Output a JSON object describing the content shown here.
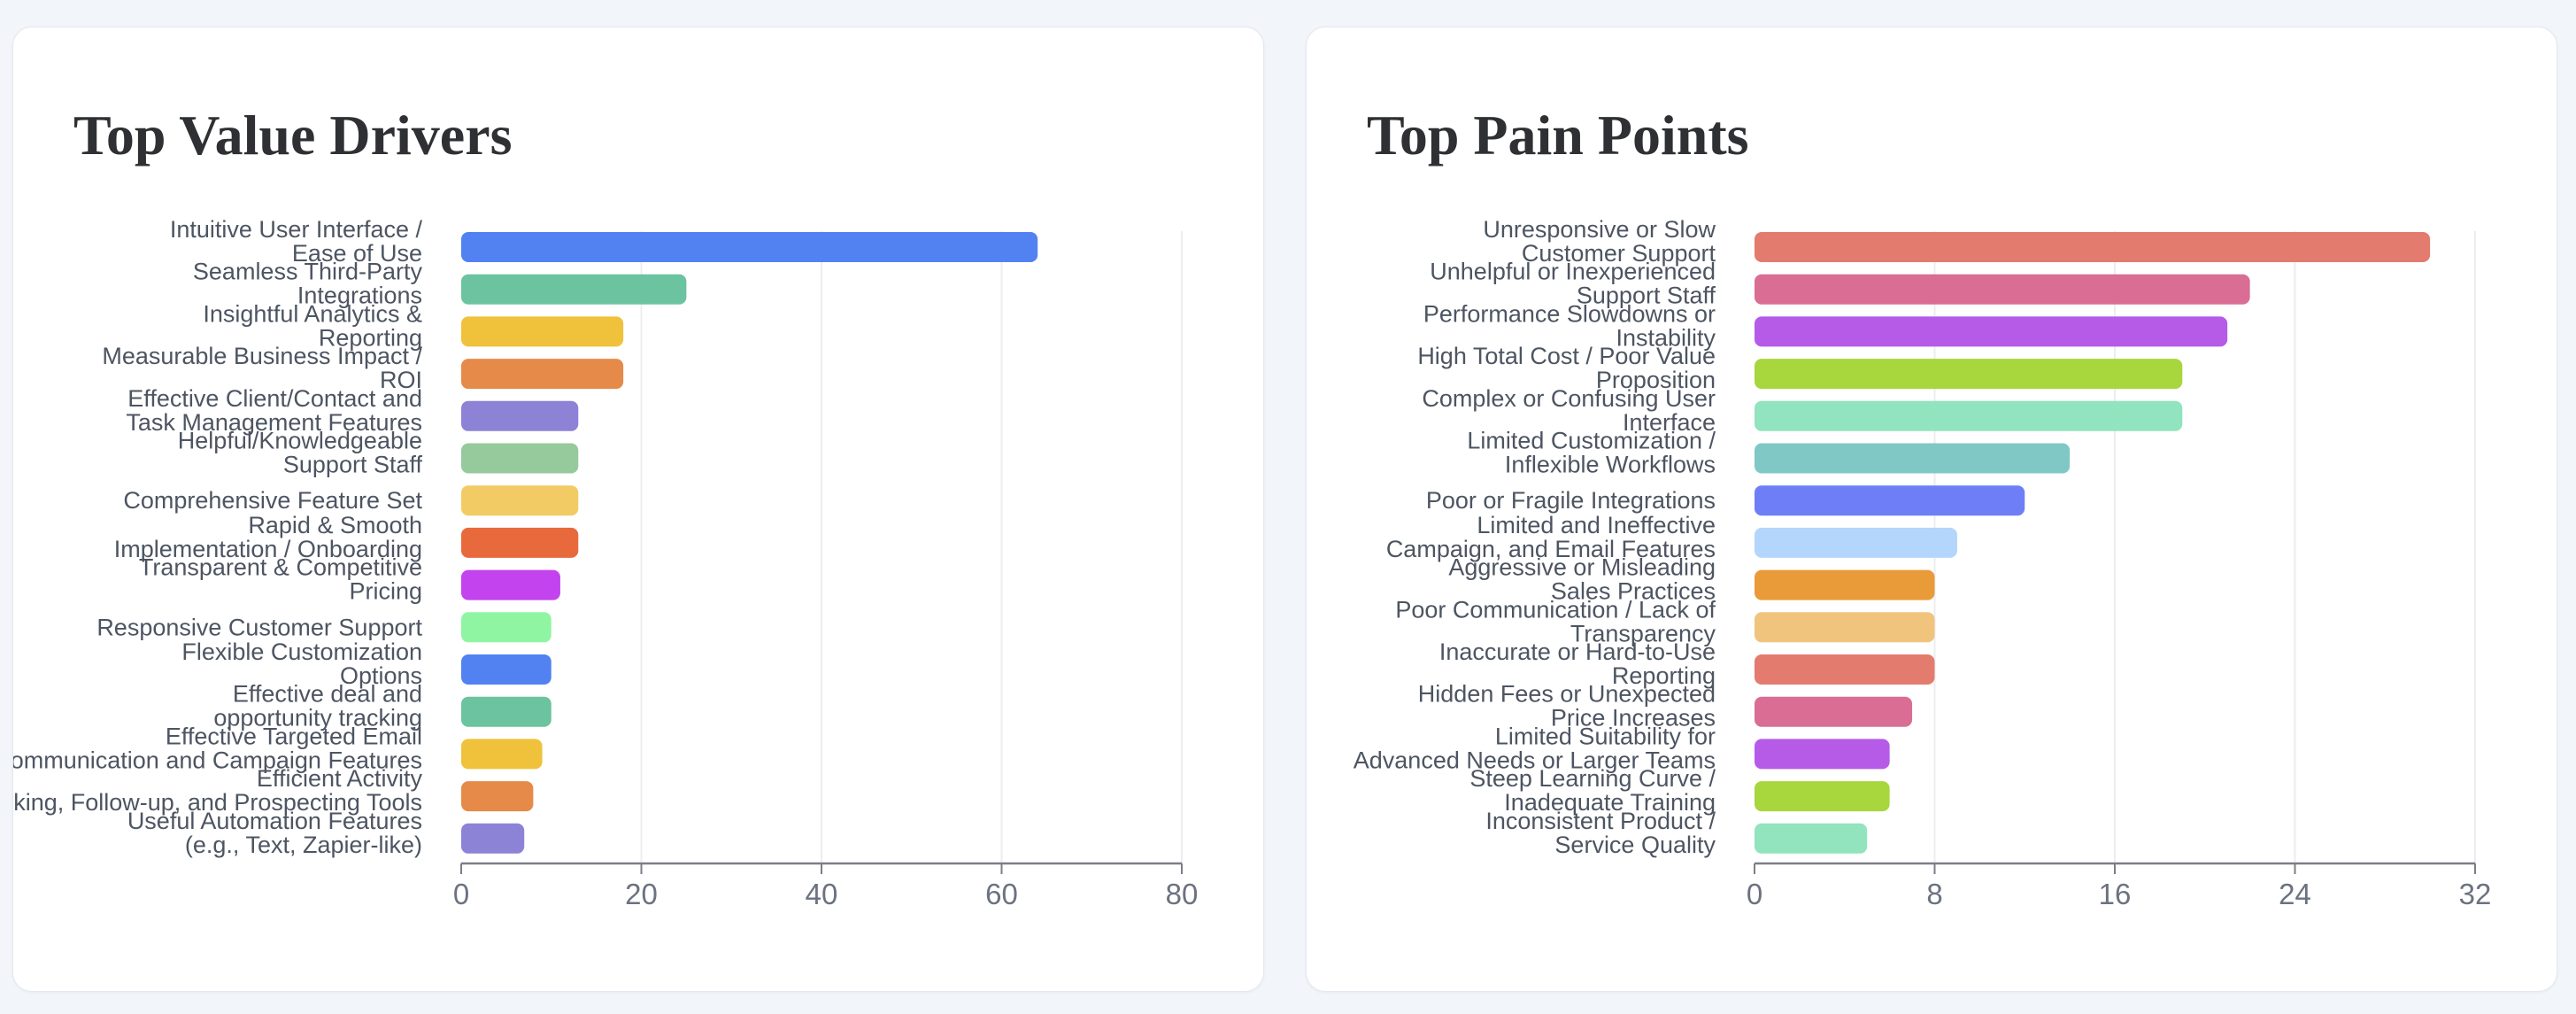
{
  "charts": [
    {
      "id": "value-drivers",
      "title": "Top Value Drivers",
      "chart_data": {
        "type": "bar",
        "orientation": "horizontal",
        "title": "Top Value Drivers",
        "categories": [
          [
            "Intuitive User Interface /",
            "Ease of Use"
          ],
          [
            "Seamless Third-Party",
            "Integrations"
          ],
          [
            "Insightful Analytics &",
            "Reporting"
          ],
          [
            "Measurable Business Impact /",
            "ROI"
          ],
          [
            "Effective Client/Contact and",
            "Task Management Features"
          ],
          [
            "Helpful/Knowledgeable",
            "Support Staff"
          ],
          [
            "Comprehensive Feature Set"
          ],
          [
            "Rapid & Smooth",
            "Implementation / Onboarding"
          ],
          [
            "Transparent & Competitive",
            "Pricing"
          ],
          [
            "Responsive Customer Support"
          ],
          [
            "Flexible Customization",
            "Options"
          ],
          [
            "Effective deal and",
            "opportunity tracking"
          ],
          [
            "Effective Targeted Email",
            "Communication and Campaign Features"
          ],
          [
            "Efficient Activity",
            "Tracking, Follow-up, and Prospecting Tools"
          ],
          [
            "Useful Automation Features",
            "(e.g., Text, Zapier-like)"
          ]
        ],
        "values": [
          64,
          25,
          18,
          18,
          13,
          13,
          13,
          13,
          11,
          10,
          10,
          10,
          9,
          8,
          7
        ],
        "colors": [
          "#5282f2",
          "#6cc39f",
          "#f0c23c",
          "#e68a49",
          "#8c83d6",
          "#96c99b",
          "#f2cb64",
          "#e8693c",
          "#c343ee",
          "#8ff5a2",
          "#5282f2",
          "#6cc39f",
          "#f0c23c",
          "#e68a49",
          "#8c83d6"
        ],
        "xticks": [
          0,
          20,
          40,
          60,
          80
        ],
        "xlim": [
          0,
          80
        ],
        "grid": "vertical"
      }
    },
    {
      "id": "pain-points",
      "title": "Top Pain Points",
      "chart_data": {
        "type": "bar",
        "orientation": "horizontal",
        "title": "Top Pain Points",
        "categories": [
          [
            "Unresponsive or Slow",
            "Customer Support"
          ],
          [
            "Unhelpful or Inexperienced",
            "Support Staff"
          ],
          [
            "Performance Slowdowns or",
            "Instability"
          ],
          [
            "High Total Cost / Poor Value",
            "Proposition"
          ],
          [
            "Complex or Confusing User",
            "Interface"
          ],
          [
            "Limited Customization /",
            "Inflexible Workflows"
          ],
          [
            "Poor or Fragile Integrations"
          ],
          [
            "Limited and Ineffective",
            "Campaign, and Email Features"
          ],
          [
            "Aggressive or Misleading",
            "Sales Practices"
          ],
          [
            "Poor Communication / Lack of",
            "Transparency"
          ],
          [
            "Inaccurate or Hard-to-Use",
            "Reporting"
          ],
          [
            "Hidden Fees or Unexpected",
            "Price Increases"
          ],
          [
            "Limited Suitability for",
            "Advanced Needs or Larger Teams"
          ],
          [
            "Steep Learning Curve /",
            "Inadequate Training"
          ],
          [
            "Inconsistent Product /",
            "Service Quality"
          ]
        ],
        "values": [
          30,
          22,
          21,
          19,
          19,
          14,
          12,
          9,
          8,
          8,
          8,
          7,
          6,
          6,
          5
        ],
        "colors": [
          "#e37b6f",
          "#d96d93",
          "#b55be8",
          "#a7d63d",
          "#91e4bd",
          "#80c8c6",
          "#6e7ef6",
          "#b5d6fc",
          "#e99a39",
          "#f0c47d",
          "#e37b6f",
          "#d96d93",
          "#b55be8",
          "#a7d63d",
          "#91e4bd"
        ],
        "xticks": [
          0,
          8,
          16,
          24,
          32
        ],
        "xlim": [
          0,
          32
        ],
        "grid": "vertical"
      }
    }
  ]
}
